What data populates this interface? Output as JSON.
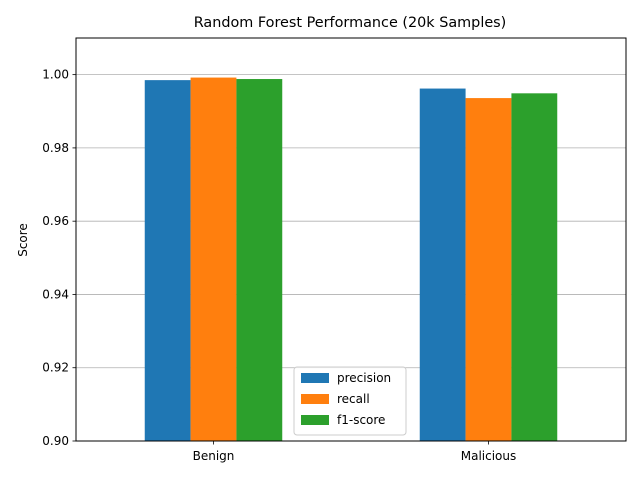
{
  "chart_data": {
    "type": "bar",
    "title": "Random Forest Performance (20k Samples)",
    "xlabel": "",
    "ylabel": "Score",
    "categories": [
      "Benign",
      "Malicious"
    ],
    "series": [
      {
        "name": "precision",
        "color": "#1f77b4",
        "values": [
          0.9985,
          0.9962
        ]
      },
      {
        "name": "recall",
        "color": "#ff7f0e",
        "values": [
          0.9992,
          0.9936
        ]
      },
      {
        "name": "f1-score",
        "color": "#2ca02c",
        "values": [
          0.9988,
          0.9949
        ]
      }
    ],
    "ylim": [
      0.9,
      1.01
    ],
    "yticks": [
      "0.90",
      "0.92",
      "0.94",
      "0.96",
      "0.98",
      "1.00"
    ],
    "grid": "y-axis on",
    "legend_position": "lower center"
  }
}
